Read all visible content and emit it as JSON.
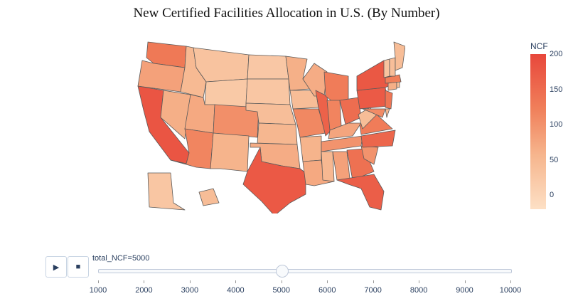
{
  "title": "New Certified Facilities Allocation in U.S. (By Number)",
  "colorbar": {
    "title": "NCF",
    "ticks": [
      "200",
      "150",
      "100",
      "50",
      "0"
    ],
    "tick_values": [
      200,
      150,
      100,
      50,
      0
    ],
    "range": [
      -20,
      200
    ],
    "colors": [
      "#fde0c5",
      "#f6b58d",
      "#f07f5a",
      "#e8473b"
    ]
  },
  "slider": {
    "current_label": "total_NCF=5000",
    "current_value": 5000,
    "ticks": [
      "1000",
      "2000",
      "3000",
      "4000",
      "5000",
      "6000",
      "7000",
      "8000",
      "9000",
      "10000"
    ],
    "tick_values": [
      1000,
      2000,
      3000,
      4000,
      5000,
      6000,
      7000,
      8000,
      9000,
      10000
    ]
  },
  "controls": {
    "play_icon": "play-icon",
    "stop_icon": "stop-icon"
  },
  "chart_data": {
    "type": "choropleth",
    "title": "New Certified Facilities Allocation in U.S. (By Number)",
    "locations": [
      "CA",
      "TX",
      "NY",
      "FL",
      "PA",
      "IL",
      "NC",
      "OH",
      "GA",
      "MI",
      "NJ",
      "WA",
      "VA",
      "AZ",
      "MA",
      "IN",
      "MO",
      "TN",
      "CO",
      "MD",
      "SC",
      "WI",
      "MN",
      "AL",
      "LA",
      "KY",
      "OR",
      "OK",
      "CT",
      "UT",
      "IA",
      "NV",
      "AR",
      "MS",
      "KS",
      "NM",
      "NE",
      "ID",
      "WV",
      "NH",
      "ME",
      "RI",
      "MT",
      "DE",
      "SD",
      "ND",
      "AK",
      "VT",
      "WY",
      "HI"
    ],
    "values": [
      182,
      176,
      178,
      170,
      175,
      165,
      160,
      150,
      145,
      130,
      140,
      135,
      130,
      118,
      128,
      120,
      115,
      100,
      105,
      110,
      100,
      65,
      60,
      80,
      70,
      75,
      80,
      65,
      62,
      70,
      40,
      62,
      55,
      48,
      50,
      55,
      38,
      45,
      40,
      38,
      40,
      35,
      30,
      45,
      25,
      22,
      25,
      30,
      20,
      40
    ]
  }
}
